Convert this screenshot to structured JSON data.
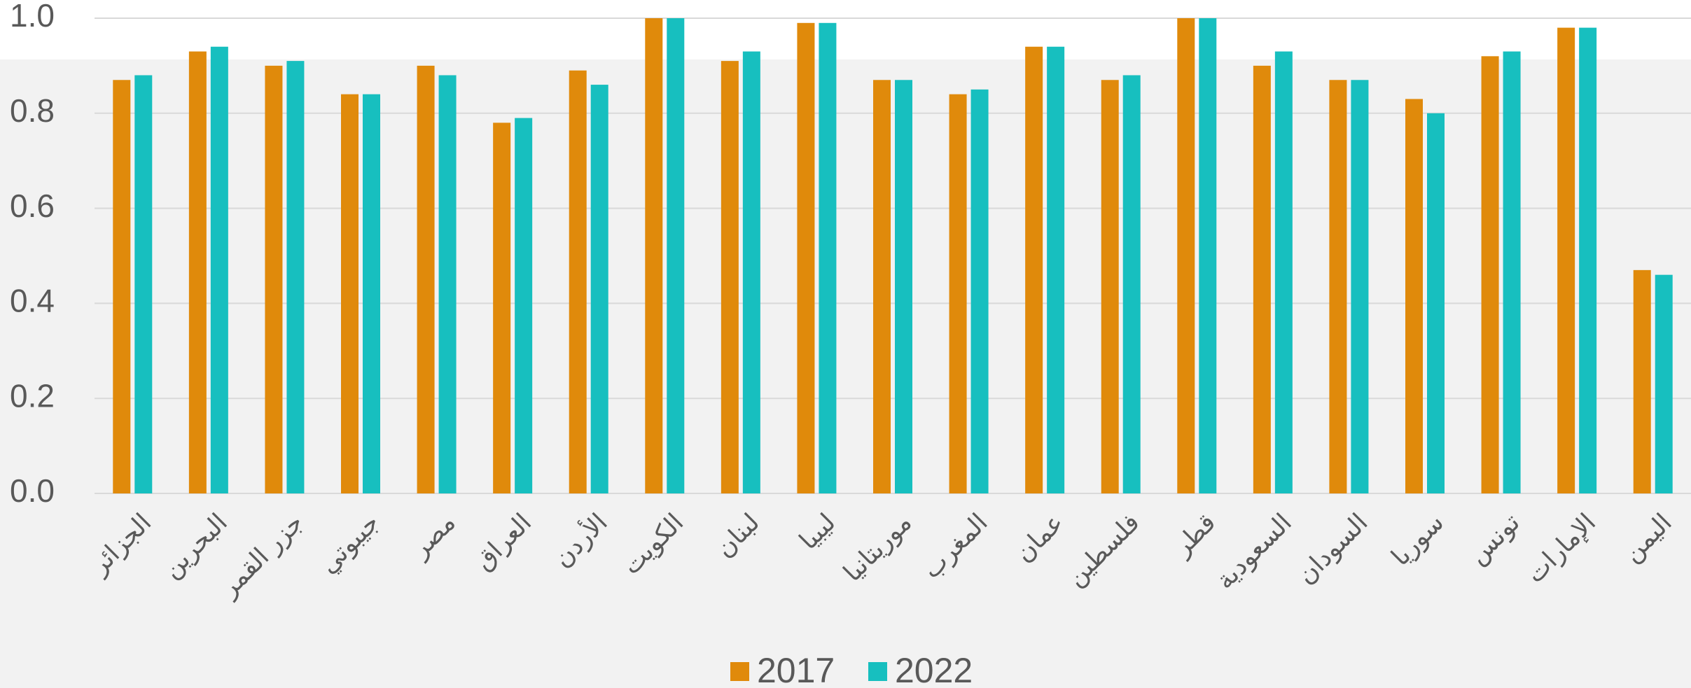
{
  "chart_data": {
    "type": "bar",
    "categories": [
      "الجزائر",
      "البحرين",
      "جزر القمر",
      "جيبوتي",
      "مصر",
      "العراق",
      "الأردن",
      "الكويت",
      "لبنان",
      "ليبيا",
      "موريتانيا",
      "المغرب",
      "عمان",
      "فلسطين",
      "قطر",
      "السعودية",
      "السودان",
      "سوريا",
      "تونس",
      "الإمارات",
      "اليمن"
    ],
    "series": [
      {
        "name": "2017",
        "color": "#e08a0b",
        "values": [
          0.87,
          0.93,
          0.9,
          0.84,
          0.9,
          0.78,
          0.89,
          1.0,
          0.91,
          0.99,
          0.87,
          0.84,
          0.94,
          0.87,
          1.0,
          0.9,
          0.87,
          0.83,
          0.92,
          0.98,
          0.47
        ]
      },
      {
        "name": "2022",
        "color": "#17bfbf",
        "values": [
          0.88,
          0.94,
          0.91,
          0.84,
          0.88,
          0.79,
          0.86,
          1.0,
          0.93,
          0.99,
          0.87,
          0.85,
          0.94,
          0.88,
          1.0,
          0.93,
          0.87,
          0.8,
          0.93,
          0.98,
          0.46
        ]
      }
    ],
    "ylim": [
      0,
      1.0
    ],
    "yticks": [
      {
        "value": 0,
        "label": "0.0"
      },
      0.2,
      0.4,
      0.6,
      0.8,
      {
        "value": 1.0,
        "label": "1.0"
      }
    ],
    "grid": true,
    "legend": "bottom"
  }
}
